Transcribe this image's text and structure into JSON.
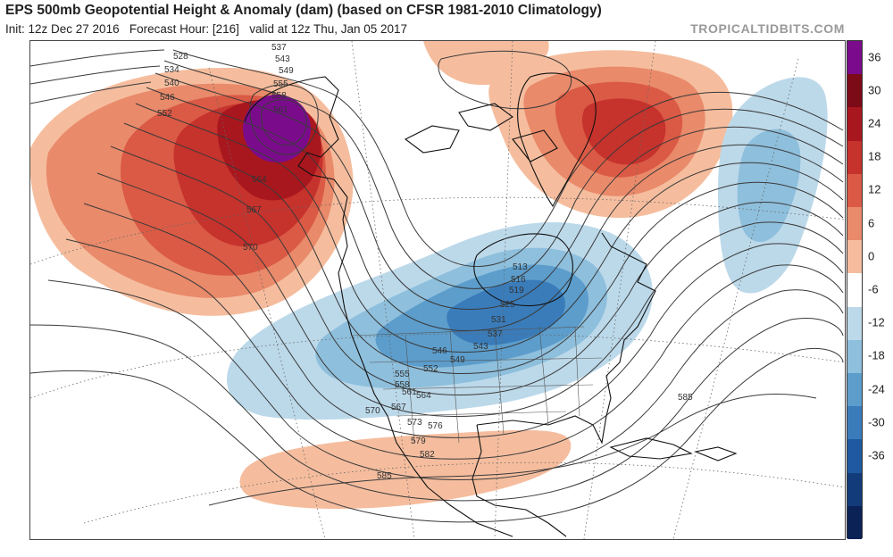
{
  "header": {
    "title": "EPS 500mb Geopotential Height & Anomaly (dam) (based on CFSR 1981-2010 Climatology)",
    "init": "Init: 12z Dec 27 2016",
    "forecast_hour": "Forecast Hour: [216]",
    "valid": "valid at 12z Thu, Jan 05 2017",
    "brand": "TROPICALTIDBITS.COM"
  },
  "colorbar": {
    "labels": [
      "36",
      "30",
      "24",
      "18",
      "12",
      "6",
      "0",
      "-6",
      "-12",
      "-18",
      "-24",
      "-30",
      "-36"
    ],
    "colors": [
      "#7a0c8c",
      "#7d0a17",
      "#a9171e",
      "#c6322c",
      "#da5a45",
      "#e98a6a",
      "#f5bd9e",
      "#ffffff",
      "#bcd9ea",
      "#8ebfdc",
      "#5c9dcc",
      "#3a7cba",
      "#1f5aa0",
      "#123b7a",
      "#0b2257"
    ]
  },
  "contour_labels": {
    "northwest": [
      "528",
      "534",
      "540",
      "546",
      "552",
      "564",
      "567",
      "570"
    ],
    "alaska": [
      "537",
      "543",
      "549",
      "555",
      "558",
      "561"
    ],
    "trough_ne": [
      "513",
      "516",
      "519",
      "525",
      "531",
      "537",
      "543"
    ],
    "trough_sw": [
      "546",
      "549",
      "552",
      "555",
      "558",
      "561",
      "564",
      "567",
      "570",
      "573",
      "576",
      "579",
      "582"
    ],
    "subtropical": [
      "585",
      "585"
    ]
  }
}
